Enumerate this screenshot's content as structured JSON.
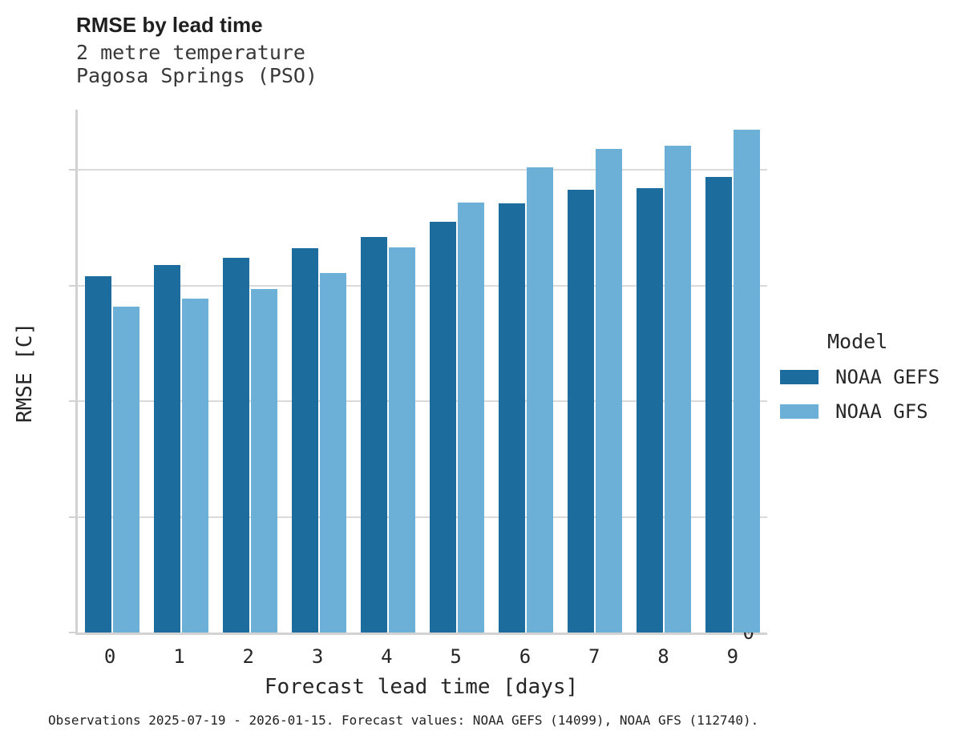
{
  "header": {
    "title": "RMSE by lead time",
    "subtitle_line1": "2 metre temperature",
    "subtitle_line2": "Pagosa Springs (PSO)"
  },
  "chart_data": {
    "type": "bar",
    "title": "RMSE by lead time",
    "subtitle": [
      "2 metre temperature",
      "Pagosa Springs (PSO)"
    ],
    "categories": [
      "0",
      "1",
      "2",
      "3",
      "4",
      "5",
      "6",
      "7",
      "8",
      "9"
    ],
    "series": [
      {
        "name": "NOAA GEFS",
        "color": "#1c6d9d",
        "values": [
          3.08,
          3.18,
          3.24,
          3.32,
          3.42,
          3.55,
          3.71,
          3.83,
          3.84,
          3.94
        ]
      },
      {
        "name": "NOAA GFS",
        "color": "#6cb0d8",
        "values": [
          2.82,
          2.89,
          2.97,
          3.11,
          3.33,
          3.72,
          4.02,
          4.18,
          4.21,
          4.35
        ]
      }
    ],
    "xlabel": "Forecast lead time [days]",
    "ylabel": "RMSE [C]",
    "ylim": [
      0,
      4.52
    ],
    "yticks": [
      0,
      1,
      2,
      3,
      4
    ],
    "legend_title": "Model",
    "legend_position": "right",
    "grid": "horizontal-only"
  },
  "colors": {
    "gridline": "#dadada",
    "axis": "#d2d2d2",
    "title_text": "#1f1f1f",
    "body_text": "#262626"
  },
  "footer": {
    "note": "Observations 2025-07-19 - 2026-01-15. Forecast values: NOAA GEFS (14099), NOAA GFS (112740)."
  }
}
